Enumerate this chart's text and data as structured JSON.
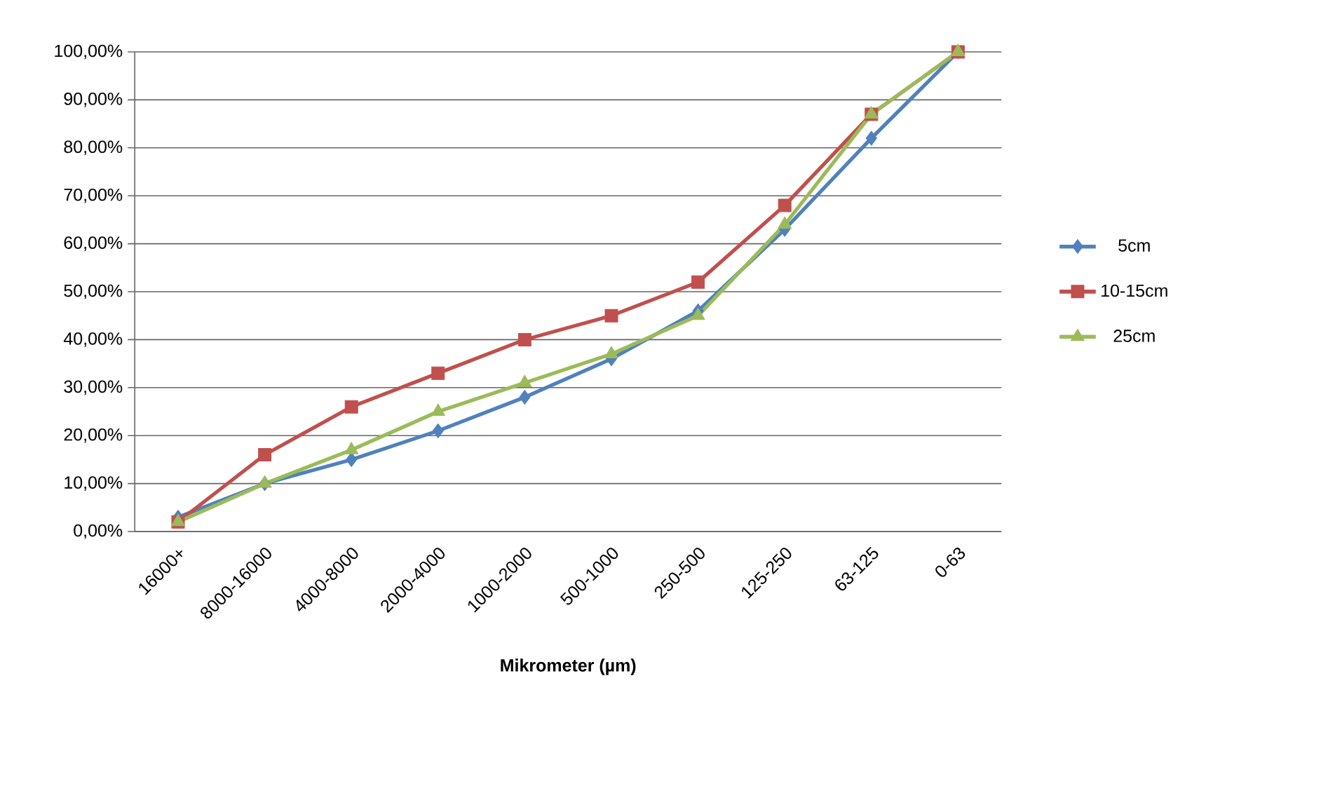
{
  "chart_data": {
    "type": "line",
    "xlabel": "Mikrometer (µm)",
    "categories": [
      "16000+",
      "8000-16000",
      "4000-8000",
      "2000-4000",
      "1000-2000",
      "500-1000",
      "250-500",
      "125-250",
      "63-125",
      "0-63"
    ],
    "series": [
      {
        "name": "5cm",
        "color": "#4f81bd",
        "marker": "diamond",
        "values": [
          3,
          10,
          15,
          21,
          28,
          36,
          46,
          63,
          82,
          100
        ]
      },
      {
        "name": "10-15cm",
        "color": "#c0504d",
        "marker": "square",
        "values": [
          2,
          16,
          26,
          33,
          40,
          45,
          52,
          68,
          87,
          100
        ]
      },
      {
        "name": "25cm",
        "color": "#9bbb59",
        "marker": "triangle",
        "values": [
          2,
          10,
          17,
          25,
          31,
          37,
          45,
          64,
          87,
          100
        ]
      }
    ],
    "ylim": [
      0,
      100
    ],
    "yticks": [
      {
        "value": 0,
        "label": "0,00%"
      },
      {
        "value": 10,
        "label": "10,00%"
      },
      {
        "value": 20,
        "label": "20,00%"
      },
      {
        "value": 30,
        "label": "30,00%"
      },
      {
        "value": 40,
        "label": "40,00%"
      },
      {
        "value": 50,
        "label": "50,00%"
      },
      {
        "value": 60,
        "label": "60,00%"
      },
      {
        "value": 70,
        "label": "70,00%"
      },
      {
        "value": 80,
        "label": "80,00%"
      },
      {
        "value": 90,
        "label": "90,00%"
      },
      {
        "value": 100,
        "label": "100,00%"
      }
    ],
    "grid": "y",
    "legend": "right",
    "line_style": "solid"
  }
}
